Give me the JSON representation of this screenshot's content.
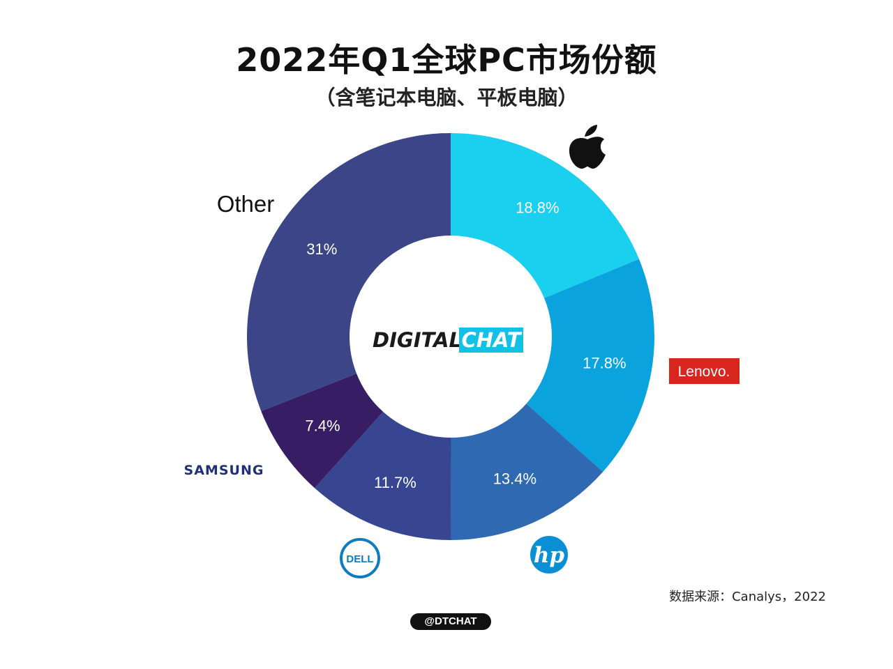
{
  "header": {
    "title": "2022年Q1全球PC市场份额",
    "subtitle": "（含笔记本电脑、平板电脑）"
  },
  "chart_data": {
    "type": "pie",
    "title": "2022年Q1全球PC市场份额",
    "subtitle": "（含笔记本电脑、平板电脑）",
    "slices": [
      {
        "brand": "Apple",
        "value": 18.8,
        "label": "18.8%",
        "color": "#1bcfee",
        "logo": "apple-logo"
      },
      {
        "brand": "Lenovo",
        "value": 17.8,
        "label": "17.8%",
        "color": "#0aa3dd",
        "logo": "lenovo-logo"
      },
      {
        "brand": "HP",
        "value": 13.4,
        "label": "13.4%",
        "color": "#2e69b2",
        "logo": "hp-logo"
      },
      {
        "brand": "Dell",
        "value": 11.7,
        "label": "11.7%",
        "color": "#384691",
        "logo": "dell-logo"
      },
      {
        "brand": "Samsung",
        "value": 7.4,
        "label": "7.4%",
        "color": "#371e64",
        "logo": "samsung-logo"
      },
      {
        "brand": "Other",
        "value": 31,
        "label": "31%",
        "color": "#3b4587",
        "logo": "other-text"
      }
    ]
  },
  "logos": {
    "other": "Other",
    "lenovo": "Lenovo.",
    "samsung": "SAMSUNG",
    "dell": "DELL",
    "hp": "hp",
    "center_left": "DIGITAL",
    "center_right": "CHAT"
  },
  "colors": {
    "lenovo_red": "#d8261f",
    "samsung_blue": "#1f2f7a",
    "dell_blue": "#0b7cc1",
    "hp_blue": "#0b8fd4",
    "chat_bg": "#13c0e6"
  },
  "footer": {
    "source": "数据来源：Canalys，2022",
    "handle": "@DTCHAT"
  }
}
